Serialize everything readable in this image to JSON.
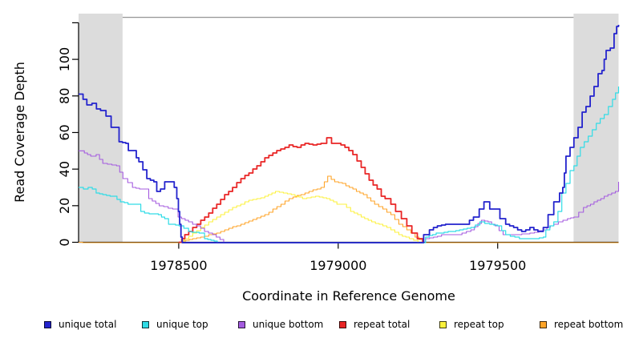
{
  "chart_data": {
    "type": "line",
    "title": "",
    "xlabel": "Coordinate in Reference Genome",
    "ylabel": "Read Coverage Depth",
    "xlim": [
      1978186,
      1979879
    ],
    "ylim": [
      0,
      125
    ],
    "grid": false,
    "legend_position": "bottom",
    "x_ticks": [
      {
        "value": 1978500,
        "label": "1978500"
      },
      {
        "value": 1979000,
        "label": "1979000"
      },
      {
        "value": 1979500,
        "label": "1979500"
      }
    ],
    "y_ticks": [
      {
        "value": 0,
        "label": "0"
      },
      {
        "value": 20,
        "label": "20"
      },
      {
        "value": 40,
        "label": "40"
      },
      {
        "value": 60,
        "label": "60"
      },
      {
        "value": 80,
        "label": "80"
      },
      {
        "value": 100,
        "label": "100"
      },
      {
        "value": 120,
        "label": ""
      }
    ],
    "shaded_regions": [
      {
        "x0": 1978186,
        "x1": 1978324,
        "fill": "#DCDCDC"
      },
      {
        "x0": 1979738,
        "x1": 1979879,
        "fill": "#DCDCDC"
      }
    ],
    "top_rule": {
      "x0": 1978324,
      "x1": 1979738,
      "y": 123,
      "color": "#949494"
    },
    "axis_color": "#000000",
    "series": [
      {
        "name": "repeat bottom",
        "color": "#FFA428",
        "width": 1.1,
        "points": [
          [
            1978186,
            0
          ],
          [
            1978500,
            0
          ],
          [
            1978544,
            2
          ],
          [
            1978619,
            5
          ],
          [
            1978695,
            10
          ],
          [
            1978770,
            15
          ],
          [
            1978846,
            24
          ],
          [
            1978896,
            27
          ],
          [
            1978946,
            30
          ],
          [
            1978967,
            36
          ],
          [
            1978989,
            33
          ],
          [
            1979013,
            32
          ],
          [
            1979046,
            29
          ],
          [
            1979079,
            26
          ],
          [
            1979114,
            21
          ],
          [
            1979140,
            18
          ],
          [
            1979165,
            15
          ],
          [
            1979190,
            10
          ],
          [
            1979215,
            7
          ],
          [
            1979241,
            3
          ],
          [
            1979265,
            0
          ],
          [
            1979879,
            0
          ]
        ]
      },
      {
        "name": "repeat top",
        "color": "#FCF23C",
        "width": 1.1,
        "points": [
          [
            1978500,
            0
          ],
          [
            1978519,
            2
          ],
          [
            1978569,
            8
          ],
          [
            1978619,
            14
          ],
          [
            1978669,
            19
          ],
          [
            1978720,
            23
          ],
          [
            1978770,
            25
          ],
          [
            1978803,
            28
          ],
          [
            1978828,
            27
          ],
          [
            1978853,
            26
          ],
          [
            1978888,
            24
          ],
          [
            1978929,
            25
          ],
          [
            1978964,
            24
          ],
          [
            1978996,
            21
          ],
          [
            1979013,
            21
          ],
          [
            1979039,
            17
          ],
          [
            1979072,
            14
          ],
          [
            1979105,
            11
          ],
          [
            1979140,
            9
          ],
          [
            1979165,
            7
          ],
          [
            1979190,
            4
          ],
          [
            1979223,
            2
          ],
          [
            1979250,
            0
          ]
        ]
      },
      {
        "name": "repeat total",
        "color": "#E92525",
        "width": 1.8,
        "points": [
          [
            1978500,
            0
          ],
          [
            1978519,
            4
          ],
          [
            1978544,
            8
          ],
          [
            1978569,
            12
          ],
          [
            1978594,
            16
          ],
          [
            1978619,
            21
          ],
          [
            1978644,
            26
          ],
          [
            1978669,
            30
          ],
          [
            1978695,
            35
          ],
          [
            1978720,
            38
          ],
          [
            1978745,
            42
          ],
          [
            1978770,
            46
          ],
          [
            1978795,
            49
          ],
          [
            1978820,
            51
          ],
          [
            1978846,
            53
          ],
          [
            1978871,
            52
          ],
          [
            1978896,
            54
          ],
          [
            1978921,
            53
          ],
          [
            1978946,
            54
          ],
          [
            1978964,
            57
          ],
          [
            1978979,
            54
          ],
          [
            1978996,
            54
          ],
          [
            1979021,
            52
          ],
          [
            1979046,
            48
          ],
          [
            1979072,
            41
          ],
          [
            1979097,
            34
          ],
          [
            1979122,
            29
          ],
          [
            1979135,
            25
          ],
          [
            1979147,
            24
          ],
          [
            1979165,
            21
          ],
          [
            1979180,
            17
          ],
          [
            1979198,
            13
          ],
          [
            1979215,
            9
          ],
          [
            1979231,
            5
          ],
          [
            1979248,
            2
          ],
          [
            1979265,
            0
          ]
        ]
      },
      {
        "name": "unique bottom",
        "color": "#A45BDF",
        "width": 1.1,
        "points": [
          [
            1978186,
            50
          ],
          [
            1978204,
            49
          ],
          [
            1978224,
            47
          ],
          [
            1978241,
            48
          ],
          [
            1978262,
            43
          ],
          [
            1978305,
            42
          ],
          [
            1978325,
            35
          ],
          [
            1978355,
            30
          ],
          [
            1978388,
            29
          ],
          [
            1978406,
            24
          ],
          [
            1978439,
            20
          ],
          [
            1978481,
            18
          ],
          [
            1978498,
            14
          ],
          [
            1978531,
            11
          ],
          [
            1978556,
            9
          ],
          [
            1978581,
            6
          ],
          [
            1978606,
            4
          ],
          [
            1978641,
            0
          ],
          [
            1979268,
            0
          ],
          [
            1979274,
            2
          ],
          [
            1979324,
            4
          ],
          [
            1979374,
            4
          ],
          [
            1979416,
            7
          ],
          [
            1979449,
            12
          ],
          [
            1979470,
            11
          ],
          [
            1979492,
            9
          ],
          [
            1979517,
            4
          ],
          [
            1979550,
            4
          ],
          [
            1979601,
            5
          ],
          [
            1979643,
            7
          ],
          [
            1979676,
            10
          ],
          [
            1979719,
            13
          ],
          [
            1979739,
            14
          ],
          [
            1979769,
            19
          ],
          [
            1979802,
            22
          ],
          [
            1979834,
            25
          ],
          [
            1979869,
            28
          ],
          [
            1979879,
            33
          ]
        ]
      },
      {
        "name": "unique top",
        "color": "#30DCE6",
        "width": 1.2,
        "points": [
          [
            1978186,
            30
          ],
          [
            1978201,
            29
          ],
          [
            1978216,
            30
          ],
          [
            1978229,
            29
          ],
          [
            1978241,
            27
          ],
          [
            1978262,
            26
          ],
          [
            1978296,
            25
          ],
          [
            1978317,
            22
          ],
          [
            1978341,
            21
          ],
          [
            1978363,
            21
          ],
          [
            1978381,
            17
          ],
          [
            1978393,
            16
          ],
          [
            1978436,
            15
          ],
          [
            1978456,
            13
          ],
          [
            1978468,
            10
          ],
          [
            1978501,
            9
          ],
          [
            1978531,
            6
          ],
          [
            1978564,
            5
          ],
          [
            1978581,
            2
          ],
          [
            1978601,
            1
          ],
          [
            1978621,
            0
          ],
          [
            1979268,
            0
          ],
          [
            1979274,
            3
          ],
          [
            1979307,
            5
          ],
          [
            1979357,
            6
          ],
          [
            1979416,
            8
          ],
          [
            1979444,
            11
          ],
          [
            1979475,
            10
          ],
          [
            1979500,
            9
          ],
          [
            1979525,
            4
          ],
          [
            1979568,
            2
          ],
          [
            1979618,
            2
          ],
          [
            1979643,
            3
          ],
          [
            1979651,
            7
          ],
          [
            1979676,
            11
          ],
          [
            1979689,
            17
          ],
          [
            1979701,
            27
          ],
          [
            1979714,
            32
          ],
          [
            1979727,
            39
          ],
          [
            1979739,
            42
          ],
          [
            1979759,
            52
          ],
          [
            1979784,
            58
          ],
          [
            1979809,
            65
          ],
          [
            1979834,
            70
          ],
          [
            1979860,
            78
          ],
          [
            1979879,
            85
          ]
        ]
      },
      {
        "name": "unique total",
        "color": "#2323CD",
        "width": 1.8,
        "points": [
          [
            1978186,
            81
          ],
          [
            1978200,
            78
          ],
          [
            1978212,
            75
          ],
          [
            1978228,
            76
          ],
          [
            1978242,
            73
          ],
          [
            1978255,
            72
          ],
          [
            1978272,
            69
          ],
          [
            1978288,
            63
          ],
          [
            1978309,
            63
          ],
          [
            1978313,
            55
          ],
          [
            1978334,
            54
          ],
          [
            1978342,
            50
          ],
          [
            1978359,
            50
          ],
          [
            1978367,
            46
          ],
          [
            1978375,
            44
          ],
          [
            1978400,
            35
          ],
          [
            1978422,
            33
          ],
          [
            1978431,
            28
          ],
          [
            1978443,
            29
          ],
          [
            1978456,
            33
          ],
          [
            1978472,
            33
          ],
          [
            1978486,
            30
          ],
          [
            1978494,
            24
          ],
          [
            1978499,
            17
          ],
          [
            1978503,
            10
          ],
          [
            1978507,
            3
          ],
          [
            1978511,
            0
          ],
          [
            1979263,
            0
          ],
          [
            1979268,
            4
          ],
          [
            1979286,
            7
          ],
          [
            1979311,
            9
          ],
          [
            1979349,
            10
          ],
          [
            1979399,
            10
          ],
          [
            1979424,
            14
          ],
          [
            1979442,
            18
          ],
          [
            1979457,
            22
          ],
          [
            1979475,
            18
          ],
          [
            1979492,
            18
          ],
          [
            1979507,
            13
          ],
          [
            1979525,
            10
          ],
          [
            1979550,
            8
          ],
          [
            1979575,
            6
          ],
          [
            1979601,
            8
          ],
          [
            1979626,
            6
          ],
          [
            1979643,
            8
          ],
          [
            1979658,
            15
          ],
          [
            1979676,
            22
          ],
          [
            1979694,
            27
          ],
          [
            1979704,
            30
          ],
          [
            1979709,
            38
          ],
          [
            1979714,
            47
          ],
          [
            1979727,
            52
          ],
          [
            1979739,
            57
          ],
          [
            1979752,
            63
          ],
          [
            1979765,
            71
          ],
          [
            1979777,
            74
          ],
          [
            1979790,
            80
          ],
          [
            1979802,
            85
          ],
          [
            1979815,
            92
          ],
          [
            1979827,
            94
          ],
          [
            1979834,
            100
          ],
          [
            1979840,
            105
          ],
          [
            1979853,
            106
          ],
          [
            1979865,
            114
          ],
          [
            1979873,
            118
          ],
          [
            1979879,
            119
          ]
        ]
      }
    ],
    "legend": {
      "items": [
        {
          "label": "unique total",
          "color": "#2323CD"
        },
        {
          "label": "unique top",
          "color": "#30DCE6"
        },
        {
          "label": "unique bottom",
          "color": "#A45BDF"
        },
        {
          "label": "repeat total",
          "color": "#E92525"
        },
        {
          "label": "repeat top",
          "color": "#FCF23C"
        },
        {
          "label": "repeat bottom",
          "color": "#FFA428"
        }
      ]
    }
  }
}
